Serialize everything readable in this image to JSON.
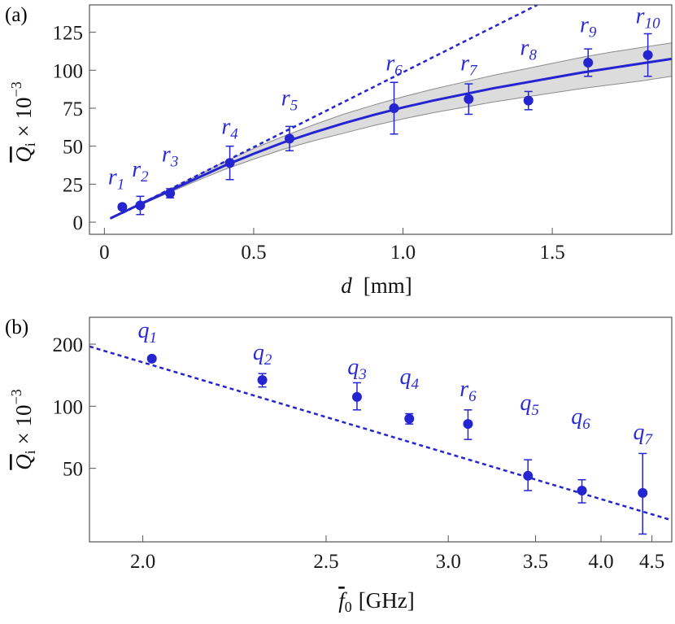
{
  "colors": {
    "series": "#2424d0",
    "label": "#2a2ad6",
    "band_fill": "#dcdcdc",
    "band_stroke": "#8c8c8c",
    "axis": "#555555"
  },
  "chart_data": [
    {
      "panel_label": "(a)",
      "type": "scatter",
      "xlabel_var": "d",
      "xlabel_unit": "[mm]",
      "ylabel_main": "Q",
      "ylabel_sub": "i",
      "ylabel_suffix": " × 10",
      "ylabel_exp": "−3",
      "xlim": [
        -0.05,
        1.9
      ],
      "ylim": [
        -8,
        143
      ],
      "x_ticks": [
        0,
        0.5,
        1.0,
        1.5
      ],
      "x_tick_labels": [
        "0",
        "0.5",
        "1.0",
        "1.5"
      ],
      "y_ticks": [
        0,
        25,
        50,
        75,
        100,
        125
      ],
      "y_tick_labels": [
        "0",
        "25",
        "50",
        "75",
        "100",
        "125"
      ],
      "points": [
        {
          "name": "r",
          "sub": "1",
          "x": 0.06,
          "y": 10,
          "err": 0,
          "label_x": 0.04,
          "label_y": 25
        },
        {
          "name": "r",
          "sub": "2",
          "x": 0.12,
          "y": 11,
          "err": 6,
          "label_x": 0.12,
          "label_y": 30
        },
        {
          "name": "r",
          "sub": "3",
          "x": 0.22,
          "y": 19,
          "err": 3,
          "label_x": 0.22,
          "label_y": 40
        },
        {
          "name": "r",
          "sub": "4",
          "x": 0.42,
          "y": 39,
          "err": 11,
          "label_x": 0.42,
          "label_y": 58
        },
        {
          "name": "r",
          "sub": "5",
          "x": 0.62,
          "y": 55,
          "err": 8,
          "label_x": 0.62,
          "label_y": 77
        },
        {
          "name": "r",
          "sub": "6",
          "x": 0.97,
          "y": 75,
          "err": 17,
          "label_x": 0.97,
          "label_y": 100
        },
        {
          "name": "r",
          "sub": "7",
          "x": 1.22,
          "y": 81,
          "err": 10,
          "label_x": 1.22,
          "label_y": 100
        },
        {
          "name": "r",
          "sub": "8",
          "x": 1.42,
          "y": 80,
          "err": 6,
          "label_x": 1.42,
          "label_y": 110
        },
        {
          "name": "r",
          "sub": "9",
          "x": 1.62,
          "y": 105,
          "err": 9,
          "label_x": 1.62,
          "label_y": 125
        },
        {
          "name": "r",
          "sub": "10",
          "x": 1.82,
          "y": 110,
          "err": 14,
          "label_x": 1.82,
          "label_y": 131
        }
      ],
      "linear_fit": {
        "x": [
          0.06,
          1.45
        ],
        "y": [
          6,
          143
        ]
      },
      "fit_curve": {
        "x": [
          0.02,
          0.1,
          0.2,
          0.3,
          0.4,
          0.5,
          0.6,
          0.7,
          0.8,
          0.9,
          1.0,
          1.1,
          1.2,
          1.3,
          1.4,
          1.5,
          1.6,
          1.7,
          1.8,
          1.9
        ],
        "y": [
          2.5,
          10,
          19,
          28,
          37,
          45,
          52.5,
          59,
          65,
          70.5,
          75.5,
          80,
          84,
          88,
          91.5,
          95,
          98.5,
          101.5,
          104.5,
          107.5
        ],
        "band_lower": [
          2.2,
          9.5,
          18,
          26.5,
          34.5,
          41.5,
          48,
          53.5,
          58.5,
          63.5,
          68,
          72,
          75.5,
          79,
          82,
          85,
          88,
          90.5,
          93,
          96
        ],
        "band_upper": [
          2.8,
          10.5,
          20,
          29.5,
          39.5,
          48.5,
          56.5,
          64,
          71,
          77,
          82.5,
          87.5,
          92,
          96.5,
          100.5,
          104.5,
          108.5,
          112,
          115,
          118
        ]
      }
    },
    {
      "panel_label": "(b)",
      "type": "scatter",
      "xscale": "reciprocal",
      "yscale": "log",
      "xlabel_var": "f",
      "xlabel_sub": "0",
      "xlabel_unit": "[GHz]",
      "ylabel_main": "Q",
      "ylabel_sub": "i",
      "ylabel_suffix": " × 10",
      "ylabel_exp": "−3",
      "xlim": [
        1.89,
        4.73
      ],
      "ylim": [
        22,
        270
      ],
      "x_ticks": [
        2.0,
        2.5,
        3.0,
        3.5,
        4.0,
        4.5
      ],
      "x_tick_labels": [
        "2.0",
        "2.5",
        "3.0",
        "3.5",
        "4.0",
        "4.5"
      ],
      "y_ticks": [
        50,
        100,
        200
      ],
      "y_tick_labels": [
        "50",
        "100",
        "200"
      ],
      "points": [
        {
          "name": "q",
          "sub": "1",
          "x": 2.02,
          "y": 170,
          "err_lo": 0,
          "err_hi": 0,
          "label_x": 2.01,
          "label_y": 215
        },
        {
          "name": "q",
          "sub": "2",
          "x": 2.3,
          "y": 134,
          "err_lo": 10,
          "err_hi": 10,
          "label_x": 2.3,
          "label_y": 168
        },
        {
          "name": "q",
          "sub": "3",
          "x": 2.61,
          "y": 111,
          "err_lo": 15,
          "err_hi": 19,
          "label_x": 2.61,
          "label_y": 143
        },
        {
          "name": "q",
          "sub": "4",
          "x": 2.82,
          "y": 87,
          "err_lo": 5,
          "err_hi": 5,
          "label_x": 2.82,
          "label_y": 128
        },
        {
          "name": "r",
          "sub": "6",
          "x": 3.1,
          "y": 82,
          "err_lo": 13,
          "err_hi": 14,
          "label_x": 3.1,
          "label_y": 112
        },
        {
          "name": "q",
          "sub": "5",
          "x": 3.45,
          "y": 46,
          "err_lo": 7,
          "err_hi": 9,
          "label_x": 3.46,
          "label_y": 96
        },
        {
          "name": "q",
          "sub": "6",
          "x": 3.84,
          "y": 39,
          "err_lo": 5,
          "err_hi": 5,
          "label_x": 3.83,
          "label_y": 82
        },
        {
          "name": "q",
          "sub": "7",
          "x": 4.4,
          "y": 38,
          "err_lo": 14,
          "err_hi": 21,
          "label_x": 4.4,
          "label_y": 69
        }
      ],
      "fit_line": {
        "x": [
          1.89,
          4.73
        ],
        "y": [
          195,
          28
        ]
      }
    }
  ]
}
